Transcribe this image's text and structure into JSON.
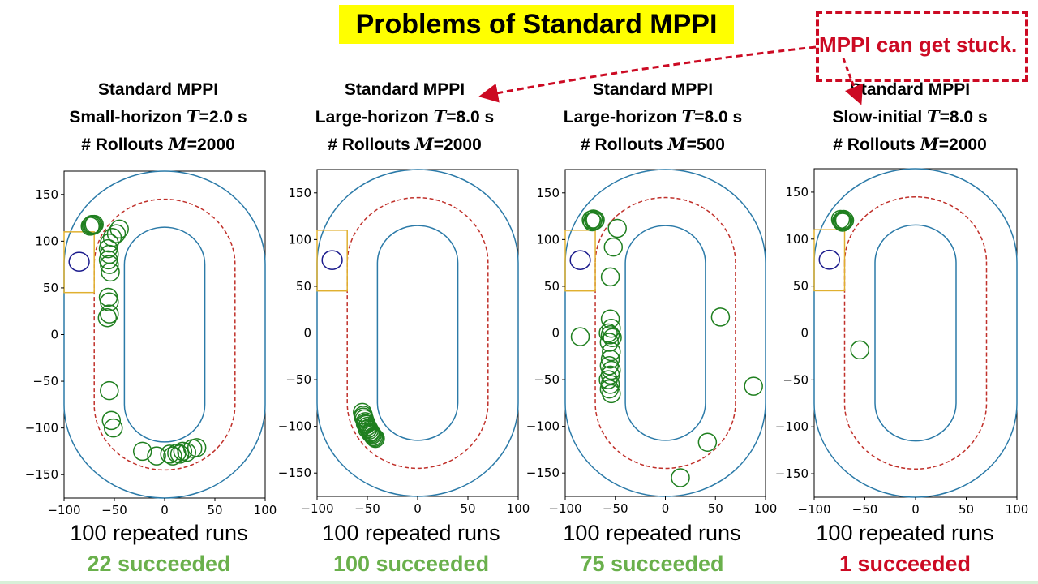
{
  "title": "Problems of Standard MPPI",
  "callout": "MPPI can get stuck.",
  "colors": {
    "track": "#2b7aa8",
    "reference": "#c0302a",
    "rollout": "#1f7f1f",
    "goal_box": "#e0b030",
    "start": "#1a1a8c",
    "success_green": "#6ab04c",
    "success_red": "#cc0a23",
    "callout": "#cc0a23",
    "title_bg": "#ffff00"
  },
  "panels": [
    {
      "line1": "Standard MPPI",
      "line2_pre": "Small-horizon ",
      "line2_var": "T",
      "line2_post": "=2.0 s",
      "line3_pre": "# Rollouts ",
      "line3_var": "M",
      "line3_post": "=2000",
      "runs": "100 repeated runs",
      "success": "22 succeeded",
      "success_color": "green"
    },
    {
      "line1": "Standard MPPI",
      "line2_pre": "Large-horizon ",
      "line2_var": "T",
      "line2_post": "=8.0 s",
      "line3_pre": "# Rollouts ",
      "line3_var": "M",
      "line3_post": "=2000",
      "runs": "100 repeated runs",
      "success": "100 succeeded",
      "success_color": "green"
    },
    {
      "line1": "Standard MPPI",
      "line2_pre": "Large-horizon ",
      "line2_var": "T",
      "line2_post": "=8.0 s",
      "line3_pre": "# Rollouts ",
      "line3_var": "M",
      "line3_post": "=500",
      "runs": "100 repeated runs",
      "success": "75 succeeded",
      "success_color": "green"
    },
    {
      "line1": "Standard MPPI",
      "line2_pre": "Slow-initial ",
      "line2_var": "T",
      "line2_post": "=8.0 s",
      "line3_pre": "# Rollouts ",
      "line3_var": "M",
      "line3_post": "=2000",
      "runs": "100 repeated runs",
      "success": "1 succeeded",
      "success_color": "red"
    }
  ],
  "chart_data": [
    {
      "type": "scatter",
      "xlim": [
        -100,
        100
      ],
      "ylim": [
        -175,
        175
      ],
      "xticks": [
        -100,
        -50,
        0,
        50,
        100
      ],
      "yticks": [
        150,
        100,
        50,
        0,
        -50,
        -100,
        -150
      ],
      "xtick_labels": [
        "−100",
        "−50",
        "0",
        "50",
        "100"
      ],
      "ytick_labels": [
        "150",
        "100",
        "50",
        "0",
        "−50",
        "−100",
        "−150"
      ],
      "points": [
        [
          -72,
          118
        ],
        [
          -73,
          117
        ],
        [
          -74,
          116
        ],
        [
          -71,
          117
        ],
        [
          -70,
          118
        ],
        [
          -45,
          113
        ],
        [
          -48,
          108
        ],
        [
          -52,
          104
        ],
        [
          -55,
          98
        ],
        [
          -56,
          92
        ],
        [
          -55,
          86
        ],
        [
          -56,
          80
        ],
        [
          -55,
          75
        ],
        [
          -54,
          67
        ],
        [
          -56,
          40
        ],
        [
          -55,
          35
        ],
        [
          -55,
          22
        ],
        [
          -57,
          18
        ],
        [
          -55,
          -60
        ],
        [
          -53,
          -92
        ],
        [
          -51,
          -100
        ],
        [
          -22,
          -125
        ],
        [
          -8,
          -130
        ],
        [
          5,
          -128
        ],
        [
          8,
          -130
        ],
        [
          12,
          -127
        ],
        [
          15,
          -128
        ],
        [
          18,
          -125
        ],
        [
          22,
          -126
        ],
        [
          28,
          -122
        ],
        [
          32,
          -121
        ]
      ]
    },
    {
      "type": "scatter",
      "xlim": [
        -100,
        100
      ],
      "ylim": [
        -175,
        175
      ],
      "xticks": [
        -100,
        -50,
        0,
        50,
        100
      ],
      "yticks": [
        150,
        100,
        50,
        0,
        -50,
        -100,
        -150
      ],
      "xtick_labels": [
        "−100",
        "−50",
        "0",
        "50",
        "100"
      ],
      "ytick_labels": [
        "150",
        "100",
        "50",
        "0",
        "−50",
        "−100",
        "−150"
      ],
      "points": [
        [
          -55,
          -85
        ],
        [
          -54,
          -88
        ],
        [
          -53,
          -92
        ],
        [
          -52,
          -95
        ],
        [
          -51,
          -98
        ],
        [
          -50,
          -100
        ],
        [
          -49,
          -102
        ],
        [
          -48,
          -104
        ],
        [
          -47,
          -106
        ],
        [
          -46,
          -108
        ],
        [
          -45,
          -109
        ],
        [
          -44,
          -111
        ],
        [
          -43,
          -112
        ],
        [
          -42,
          -113
        ],
        [
          -54,
          -90
        ],
        [
          -52,
          -97
        ],
        [
          -50,
          -103
        ],
        [
          -47,
          -107
        ]
      ]
    },
    {
      "type": "scatter",
      "xlim": [
        -100,
        100
      ],
      "ylim": [
        -175,
        175
      ],
      "xticks": [
        -100,
        -50,
        0,
        50,
        100
      ],
      "yticks": [
        150,
        100,
        50,
        0,
        -50,
        -100,
        -150
      ],
      "xtick_labels": [
        "−100",
        "−50",
        "0",
        "50",
        "100"
      ],
      "ytick_labels": [
        "150",
        "100",
        "50",
        "0",
        "−50",
        "−100",
        "−150"
      ],
      "points": [
        [
          -72,
          122
        ],
        [
          -71,
          120
        ],
        [
          -73,
          119
        ],
        [
          -70,
          121
        ],
        [
          -74,
          121
        ],
        [
          -48,
          112
        ],
        [
          -52,
          92
        ],
        [
          -55,
          60
        ],
        [
          -85,
          -4
        ],
        [
          -55,
          15
        ],
        [
          -54,
          5
        ],
        [
          -57,
          0
        ],
        [
          -55,
          -2
        ],
        [
          -53,
          -5
        ],
        [
          -56,
          -10
        ],
        [
          -54,
          -20
        ],
        [
          -55,
          -28
        ],
        [
          -56,
          -35
        ],
        [
          -54,
          -40
        ],
        [
          -55,
          -45
        ],
        [
          -57,
          -50
        ],
        [
          -55,
          -55
        ],
        [
          -56,
          -60
        ],
        [
          -54,
          -65
        ],
        [
          55,
          17
        ],
        [
          88,
          -57
        ],
        [
          42,
          -117
        ],
        [
          15,
          -155
        ]
      ]
    },
    {
      "type": "scatter",
      "xlim": [
        -100,
        100
      ],
      "ylim": [
        -175,
        175
      ],
      "xticks": [
        -100,
        -50,
        0,
        50,
        100
      ],
      "yticks": [
        150,
        100,
        50,
        0,
        -50,
        -100,
        -150
      ],
      "xtick_labels": [
        "−100",
        "−50",
        "0",
        "50",
        "100"
      ],
      "ytick_labels": [
        "150",
        "100",
        "50",
        "0",
        "−50",
        "−100",
        "−150"
      ],
      "points": [
        [
          -72,
          120
        ],
        [
          -71,
          121
        ],
        [
          -73,
          119
        ],
        [
          -70,
          120
        ],
        [
          -72,
          118
        ],
        [
          -74,
          121
        ],
        [
          -55,
          -18
        ]
      ]
    }
  ]
}
